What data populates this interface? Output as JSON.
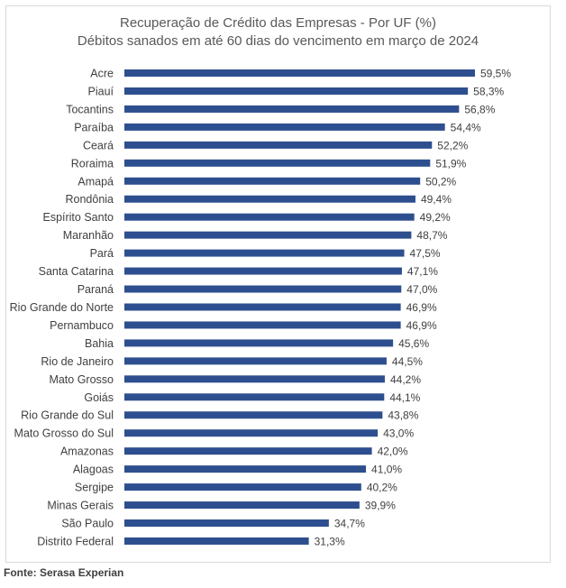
{
  "chart_data": {
    "type": "bar",
    "orientation": "horizontal",
    "title": "Recuperação de Crédito das Empresas - Por UF (%)",
    "subtitle": "Débitos sanados em até 60 dias do vencimento em março de 2024",
    "xlabel": "",
    "ylabel": "",
    "categories": [
      "Acre",
      "Piauí",
      "Tocantins",
      "Paraíba",
      "Ceará",
      "Roraima",
      "Amapá",
      "Rondônia",
      "Espírito Santo",
      "Maranhão",
      "Pará",
      "Santa Catarina",
      "Paraná",
      "Rio Grande do Norte",
      "Pernambuco",
      "Bahia",
      "Rio de Janeiro",
      "Mato Grosso",
      "Goiás",
      "Rio Grande do Sul",
      "Mato Grosso do Sul",
      "Amazonas",
      "Alagoas",
      "Sergipe",
      "Minas Gerais",
      "São Paulo",
      "Distrito Federal"
    ],
    "values": [
      59.5,
      58.3,
      56.8,
      54.4,
      52.2,
      51.9,
      50.2,
      49.4,
      49.2,
      48.7,
      47.5,
      47.1,
      47.0,
      46.9,
      46.9,
      45.6,
      44.5,
      44.2,
      44.1,
      43.8,
      43.0,
      42.0,
      41.0,
      40.2,
      39.9,
      34.7,
      31.3
    ],
    "value_labels": [
      "59,5%",
      "58,3%",
      "56,8%",
      "54,4%",
      "52,2%",
      "51,9%",
      "50,2%",
      "49,4%",
      "49,2%",
      "48,7%",
      "47,5%",
      "47,1%",
      "47,0%",
      "46,9%",
      "46,9%",
      "45,6%",
      "44,5%",
      "44,2%",
      "44,1%",
      "43,8%",
      "43,0%",
      "42,0%",
      "41,0%",
      "40,2%",
      "39,9%",
      "34,7%",
      "31,3%"
    ],
    "xlim": [
      0,
      59.5
    ],
    "grid": false,
    "legend": "none",
    "bar_color": "#2e4f8f"
  },
  "source": "Fonte: Serasa Experian"
}
